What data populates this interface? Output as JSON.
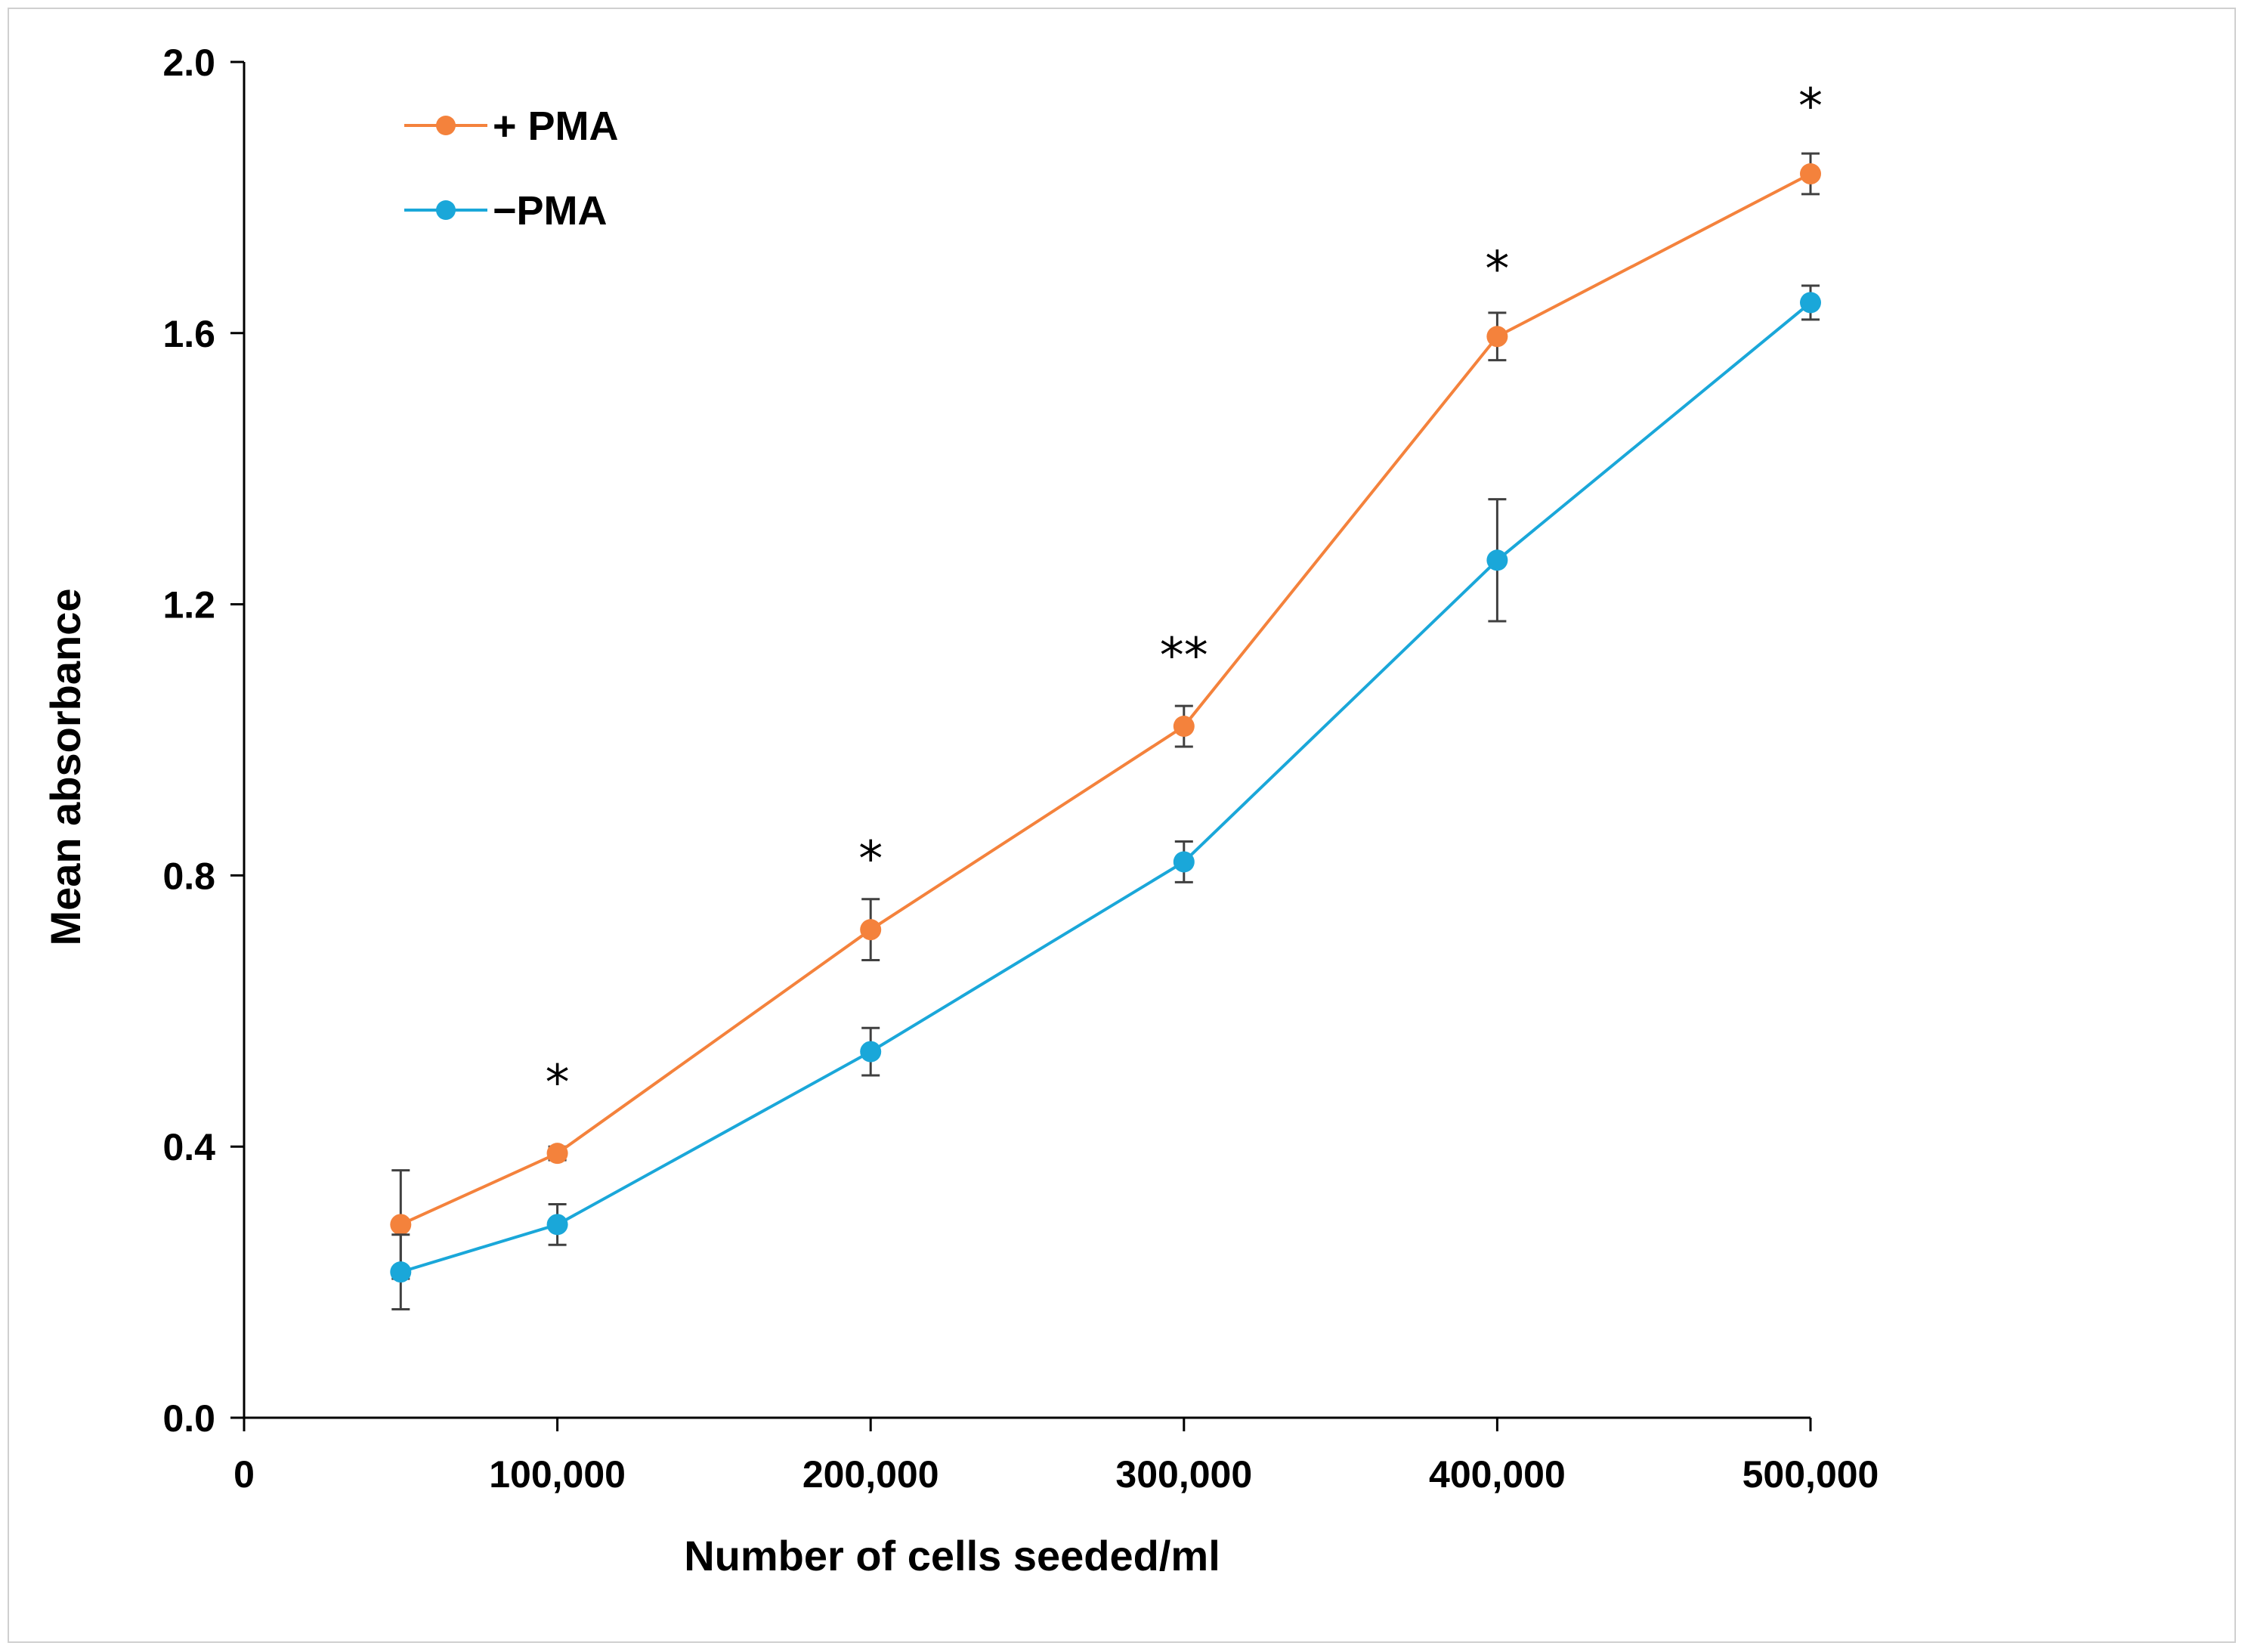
{
  "chart_data": {
    "type": "line",
    "title": "",
    "xlabel": "Number of cells seeded/ml",
    "ylabel": "Mean absorbance",
    "xlim": [
      0,
      500000
    ],
    "ylim": [
      0.0,
      2.0
    ],
    "x_ticks": [
      0,
      100000,
      200000,
      300000,
      400000,
      500000
    ],
    "x_tick_labels": [
      "0",
      "100,000",
      "200,000",
      "300,000",
      "400,000",
      "500,000"
    ],
    "y_ticks": [
      0.0,
      0.4,
      0.8,
      1.2,
      1.6,
      2.0
    ],
    "y_tick_labels": [
      "0.0",
      "0.4",
      "0.8",
      "1.2",
      "1.6",
      "2.0"
    ],
    "grid": false,
    "legend_position": "top-left",
    "x": [
      50000,
      100000,
      200000,
      300000,
      400000,
      500000
    ],
    "series": [
      {
        "name": "+ PMA",
        "color": "#f4823c",
        "values": [
          0.285,
          0.39,
          0.72,
          1.02,
          1.595,
          1.835
        ],
        "errors": [
          0.08,
          0.01,
          0.045,
          0.03,
          0.035,
          0.03
        ]
      },
      {
        "name": "−PMA",
        "color": "#1aa7d9",
        "values": [
          0.215,
          0.285,
          0.54,
          0.82,
          1.265,
          1.645
        ],
        "errors": [
          0.055,
          0.03,
          0.035,
          0.03,
          0.09,
          0.025
        ]
      }
    ],
    "annotations": [
      {
        "x": 100000,
        "y": 0.47,
        "text": "*"
      },
      {
        "x": 200000,
        "y": 0.8,
        "text": "*"
      },
      {
        "x": 300000,
        "y": 1.1,
        "text": "**"
      },
      {
        "x": 400000,
        "y": 1.67,
        "text": "*"
      },
      {
        "x": 500000,
        "y": 1.91,
        "text": "*"
      }
    ]
  }
}
